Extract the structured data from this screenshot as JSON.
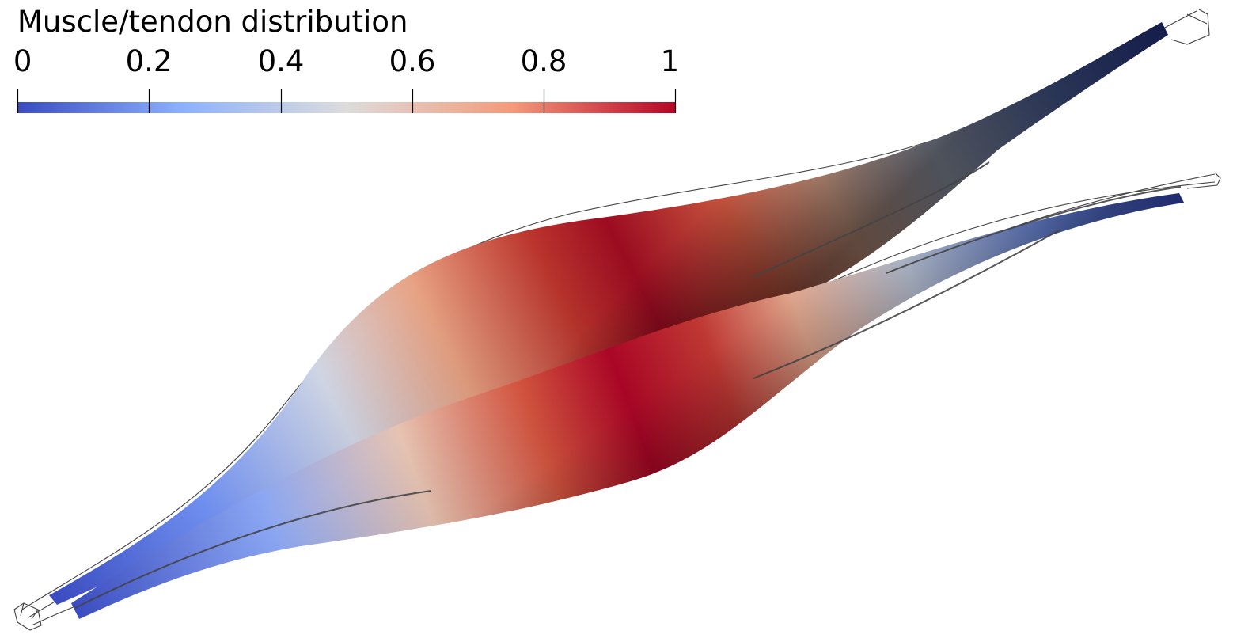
{
  "colorbar": {
    "title": "Muscle/tendon distribution",
    "ticks": [
      "0",
      "0.2",
      "0.4",
      "0.6",
      "0.8",
      "1"
    ],
    "range": [
      0,
      1
    ],
    "colormap": [
      "#3b4cc0",
      "#8db0fe",
      "#dddcdc",
      "#f49a7b",
      "#b40426"
    ],
    "colormap_name": "Cool to Warm"
  },
  "scene": {
    "background": "#ffffff",
    "objects": [
      "muscle-upper",
      "muscle-lower"
    ],
    "wireframe_color": "#222222",
    "fiber_color": "#444444"
  }
}
